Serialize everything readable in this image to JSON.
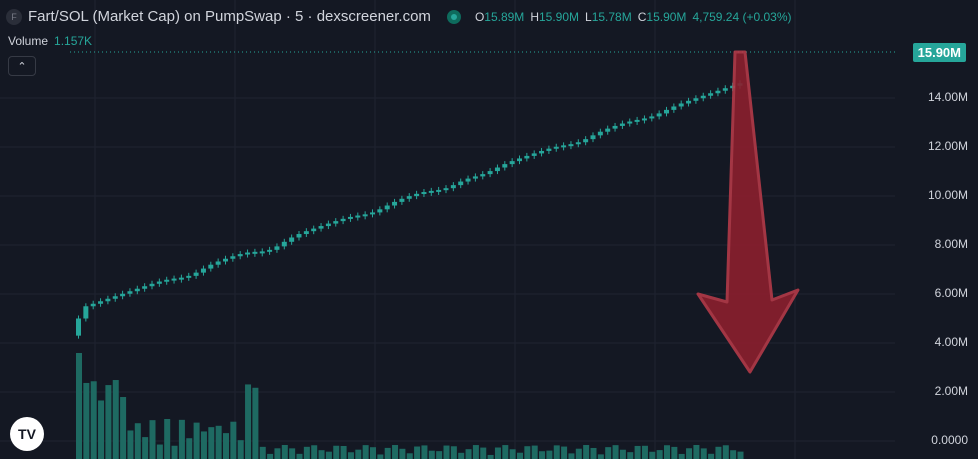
{
  "header": {
    "symbol_icon": "F",
    "title": "Fart/SOL (Market Cap) on PumpSwap · 5 · dexscreener.com",
    "ohlc": {
      "o_key": "O",
      "o": "15.89M",
      "h_key": "H",
      "h": "15.90M",
      "l_key": "L",
      "l": "15.78M",
      "c_key": "C",
      "c": "15.90M",
      "change": "4,759.24 (+0.03%)"
    }
  },
  "volume": {
    "label": "Volume",
    "value": "1.157K"
  },
  "collapse_icon": "chevron-up-icon",
  "last_price": "15.90M",
  "price_axis": [
    "14.00M",
    "12.00M",
    "10.00M",
    "8.00M",
    "6.00M",
    "4.00M",
    "2.00M",
    "0.0000"
  ],
  "logo_text": "TV",
  "colors": {
    "background": "#141823",
    "up": "#26a69a",
    "down": "#ef5350",
    "arrow": "#8b1f2e",
    "grid": "#1f2330"
  },
  "annotation": {
    "type": "down-arrow-icon"
  }
}
